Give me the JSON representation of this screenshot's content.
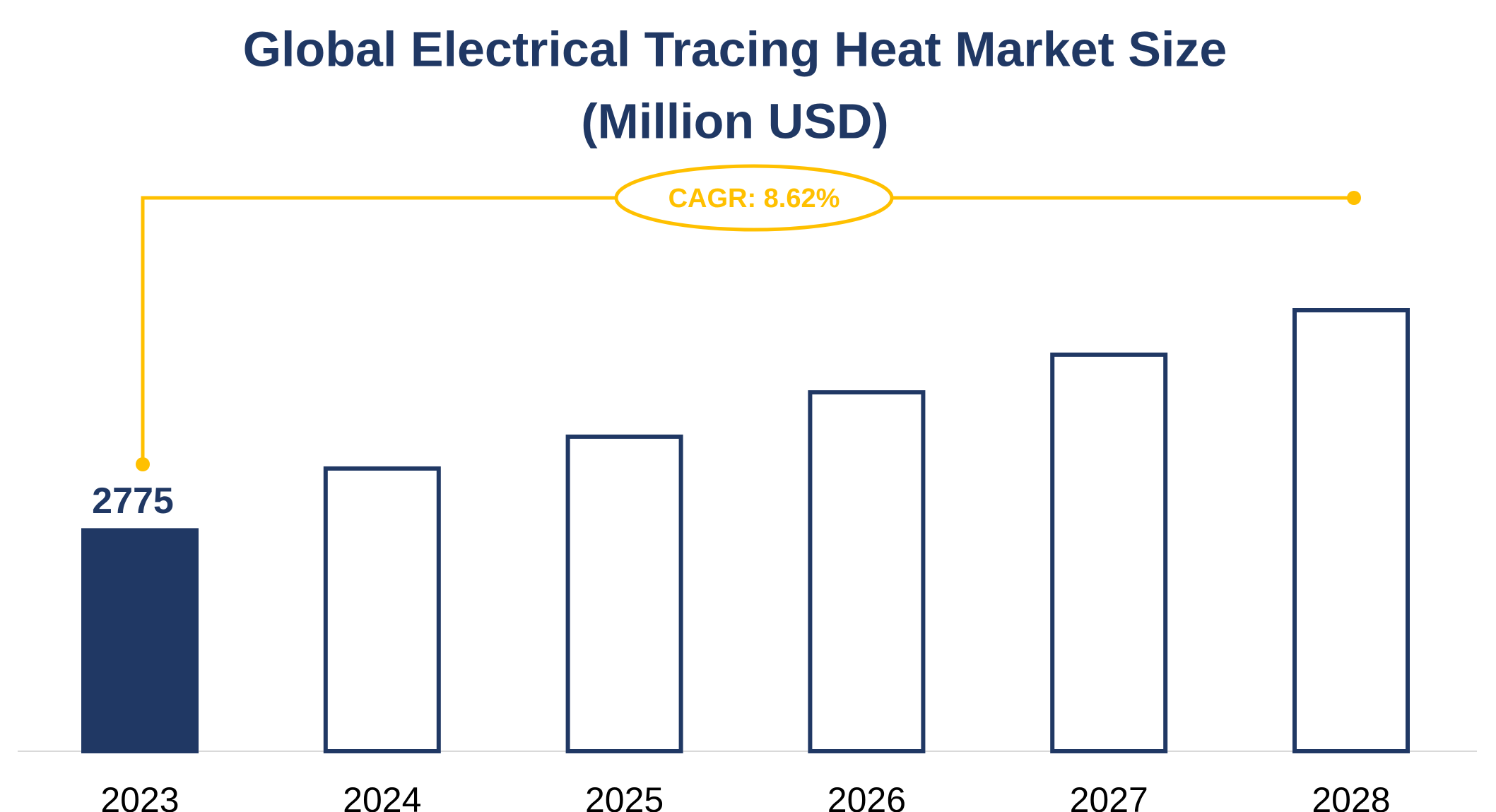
{
  "chart_data": {
    "type": "bar",
    "title": [
      "Global Electrical Tracing Heat Market Size",
      "(Million USD)"
    ],
    "annotation": "CAGR: 8.62%",
    "categories": [
      "2023",
      "2024",
      "2025",
      "2026",
      "2027",
      "2028"
    ],
    "values": [
      2775,
      3551,
      3951,
      4508,
      4981,
      5539
    ],
    "value_labels": [
      "2775",
      null,
      null,
      null,
      null,
      null
    ],
    "fills": [
      "#203864",
      "#ffffff",
      "#ffffff",
      "#ffffff",
      "#ffffff",
      "#ffffff"
    ],
    "edge_color": "#203864",
    "annotation_color": "#ffc000",
    "title_color": "#203864"
  }
}
